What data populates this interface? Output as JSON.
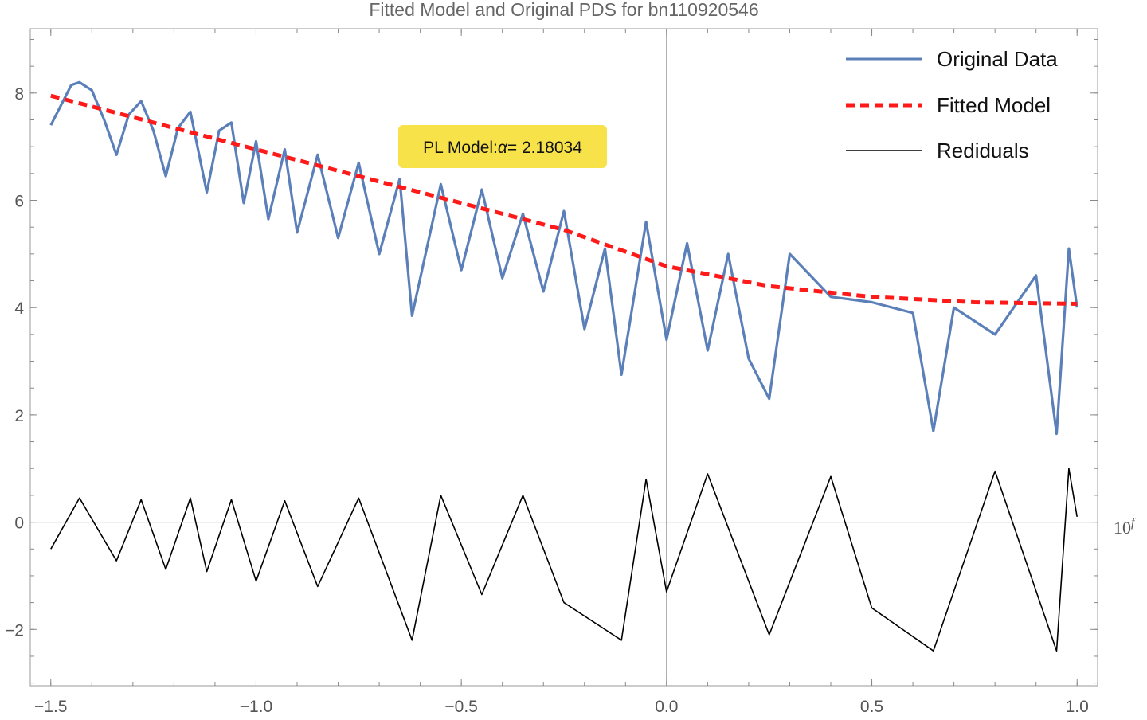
{
  "chart_data": {
    "type": "line",
    "title": "Fitted Model and Original PDS for bn110920546",
    "xlabel": "10",
    "xlabel_sup": "f",
    "ylabel": "",
    "xlim": [
      -1.55,
      1.05
    ],
    "ylim": [
      -3.05,
      9.2
    ],
    "x_ticks": [
      -1.5,
      -1.0,
      -0.5,
      0.0,
      0.5,
      1.0
    ],
    "x_tick_labels": [
      "−1.5",
      "−1.0",
      "−0.5",
      "0.0",
      "0.5",
      "1.0"
    ],
    "y_ticks": [
      -2,
      0,
      2,
      4,
      6,
      8
    ],
    "y_tick_labels": [
      "−2",
      "0",
      "2",
      "4",
      "6",
      "8"
    ],
    "grid": false,
    "legend_position": "top-right",
    "annotation": {
      "prefix": "PL Model:",
      "symbol": "α",
      "suffix": "= 2.18034"
    },
    "colors": {
      "original": "#5b7fb8",
      "fitted": "#ff1a1a",
      "residuals": "#000000",
      "annotation_bg": "#f8e24a",
      "axis": "#888888"
    },
    "series": [
      {
        "name": "Original Data",
        "style": "solid-thick",
        "x": [
          -1.5,
          -1.45,
          -1.43,
          -1.4,
          -1.37,
          -1.34,
          -1.31,
          -1.28,
          -1.25,
          -1.22,
          -1.19,
          -1.16,
          -1.12,
          -1.09,
          -1.06,
          -1.03,
          -1.0,
          -0.97,
          -0.93,
          -0.9,
          -0.85,
          -0.8,
          -0.75,
          -0.7,
          -0.65,
          -0.62,
          -0.55,
          -0.5,
          -0.45,
          -0.4,
          -0.35,
          -0.3,
          -0.25,
          -0.2,
          -0.15,
          -0.11,
          -0.05,
          0.0,
          0.05,
          0.1,
          0.15,
          0.2,
          0.25,
          0.3,
          0.4,
          0.5,
          0.6,
          0.65,
          0.7,
          0.8,
          0.9,
          0.95,
          0.98,
          1.0
        ],
        "y": [
          7.4,
          8.15,
          8.2,
          8.05,
          7.5,
          6.85,
          7.6,
          7.85,
          7.3,
          6.45,
          7.35,
          7.65,
          6.15,
          7.3,
          7.45,
          5.95,
          7.1,
          5.65,
          6.95,
          5.4,
          6.85,
          5.3,
          6.7,
          5.0,
          6.4,
          3.85,
          6.3,
          4.7,
          6.2,
          4.55,
          5.75,
          4.3,
          5.8,
          3.6,
          5.1,
          2.75,
          5.6,
          3.4,
          5.2,
          3.2,
          5.0,
          3.05,
          2.3,
          5.0,
          4.2,
          4.1,
          3.9,
          1.7,
          4.0,
          3.5,
          4.6,
          1.65,
          5.1,
          4.0
        ]
      },
      {
        "name": "Fitted Model",
        "style": "dashed",
        "x": [
          -1.5,
          -1.25,
          -1.0,
          -0.75,
          -0.5,
          -0.25,
          0.0,
          0.25,
          0.5,
          0.75,
          1.0
        ],
        "y": [
          7.95,
          7.45,
          6.95,
          6.45,
          5.95,
          5.45,
          4.77,
          4.4,
          4.2,
          4.1,
          4.07
        ]
      },
      {
        "name": "Rediduals",
        "style": "solid-thin",
        "x": [
          -1.5,
          -1.43,
          -1.34,
          -1.28,
          -1.22,
          -1.16,
          -1.12,
          -1.06,
          -1.0,
          -0.93,
          -0.85,
          -0.75,
          -0.62,
          -0.55,
          -0.45,
          -0.35,
          -0.25,
          -0.11,
          -0.05,
          0.0,
          0.1,
          0.25,
          0.4,
          0.5,
          0.65,
          0.8,
          0.95,
          0.98,
          1.0
        ],
        "y": [
          -0.5,
          0.45,
          -0.72,
          0.42,
          -0.88,
          0.45,
          -0.92,
          0.42,
          -1.1,
          0.4,
          -1.2,
          0.45,
          -2.2,
          0.5,
          -1.35,
          0.5,
          -1.5,
          -2.2,
          0.8,
          -1.3,
          0.9,
          -2.1,
          0.85,
          -1.6,
          -2.4,
          0.95,
          -2.4,
          1.0,
          0.1
        ]
      }
    ]
  }
}
